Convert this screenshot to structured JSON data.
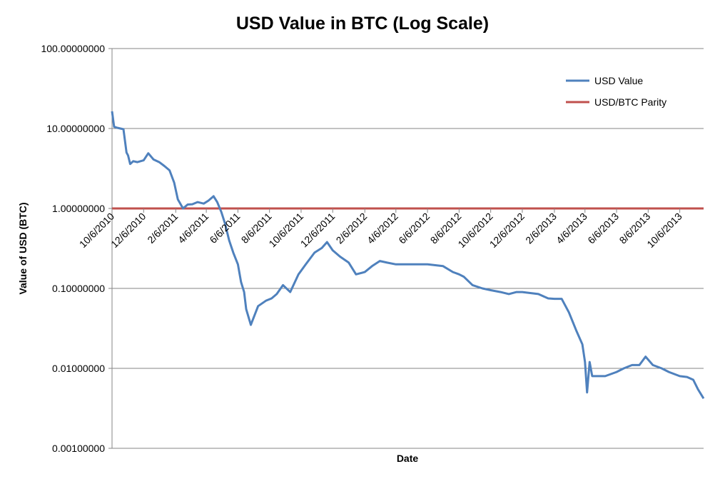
{
  "chart_data": {
    "type": "line",
    "title": "USD Value in BTC (Log Scale)",
    "xlabel": "Date",
    "ylabel": "Value of USD (BTC)",
    "y_scale": "log",
    "ylim": [
      0.001,
      100
    ],
    "y_ticks": [
      "100.00000000",
      "10.00000000",
      "1.00000000",
      "0.10000000",
      "0.01000000",
      "0.00100000"
    ],
    "y_tick_values": [
      100,
      10,
      1,
      0.1,
      0.01,
      0.001
    ],
    "x_tick_labels": [
      "10/6/2010",
      "12/6/2010",
      "2/6/2011",
      "4/6/2011",
      "6/6/2011",
      "8/6/2011",
      "10/6/2011",
      "12/6/2011",
      "2/6/2012",
      "4/6/2012",
      "6/6/2012",
      "8/6/2012",
      "10/6/2012",
      "12/6/2012",
      "2/6/2013",
      "4/6/2013",
      "6/6/2013",
      "8/6/2013",
      "10/6/2013"
    ],
    "xlim": [
      "2010-10-06",
      "2013-11-21"
    ],
    "grid": "horizontal",
    "legend_position": "top-right",
    "colors": {
      "usd_value": "#4f81bd",
      "parity": "#c0504d",
      "grid": "#868686"
    },
    "series": [
      {
        "name": "USD Value",
        "x": [
          "2010-10-06",
          "2010-10-10",
          "2010-10-16",
          "2010-10-22",
          "2010-10-28",
          "2010-11-03",
          "2010-11-06",
          "2010-11-10",
          "2010-11-16",
          "2010-11-24",
          "2010-12-06",
          "2010-12-15",
          "2010-12-25",
          "2011-01-05",
          "2011-01-15",
          "2011-01-25",
          "2011-02-03",
          "2011-02-10",
          "2011-02-20",
          "2011-03-01",
          "2011-03-10",
          "2011-03-20",
          "2011-04-01",
          "2011-04-10",
          "2011-04-20",
          "2011-04-27",
          "2011-05-05",
          "2011-05-12",
          "2011-05-20",
          "2011-05-28",
          "2011-06-06",
          "2011-06-12",
          "2011-06-18",
          "2011-06-22",
          "2011-07-01",
          "2011-07-15",
          "2011-07-30",
          "2011-08-10",
          "2011-08-20",
          "2011-09-01",
          "2011-09-15",
          "2011-10-01",
          "2011-10-15",
          "2011-11-01",
          "2011-11-15",
          "2011-11-25",
          "2011-12-06",
          "2011-12-20",
          "2012-01-06",
          "2012-01-20",
          "2012-02-06",
          "2012-02-20",
          "2012-03-06",
          "2012-03-20",
          "2012-04-06",
          "2012-05-06",
          "2012-06-06",
          "2012-07-06",
          "2012-07-25",
          "2012-08-06",
          "2012-08-15",
          "2012-09-01",
          "2012-09-20",
          "2012-10-06",
          "2012-10-25",
          "2012-11-10",
          "2012-11-25",
          "2012-12-06",
          "2013-01-06",
          "2013-01-25",
          "2013-02-06",
          "2013-02-20",
          "2013-03-06",
          "2013-03-20",
          "2013-04-01",
          "2013-04-06",
          "2013-04-10",
          "2013-04-15",
          "2013-04-20",
          "2013-05-01",
          "2013-05-15",
          "2013-06-06",
          "2013-06-20",
          "2013-07-06",
          "2013-07-20",
          "2013-08-01",
          "2013-08-15",
          "2013-09-01",
          "2013-09-15",
          "2013-10-06",
          "2013-10-20",
          "2013-11-01",
          "2013-11-10",
          "2013-11-21"
        ],
        "values": [
          16.4,
          10.5,
          10.2,
          10.0,
          9.8,
          5.0,
          4.6,
          3.6,
          3.9,
          3.8,
          4.0,
          4.9,
          4.1,
          3.8,
          3.4,
          3.0,
          2.1,
          1.3,
          1.0,
          1.12,
          1.13,
          1.2,
          1.15,
          1.25,
          1.42,
          1.2,
          0.9,
          0.65,
          0.4,
          0.28,
          0.2,
          0.12,
          0.09,
          0.055,
          0.035,
          0.06,
          0.07,
          0.075,
          0.085,
          0.11,
          0.09,
          0.15,
          0.2,
          0.28,
          0.32,
          0.38,
          0.3,
          0.25,
          0.21,
          0.15,
          0.16,
          0.19,
          0.22,
          0.21,
          0.2,
          0.2,
          0.2,
          0.19,
          0.16,
          0.15,
          0.14,
          0.11,
          0.1,
          0.095,
          0.09,
          0.085,
          0.09,
          0.09,
          0.085,
          0.075,
          0.074,
          0.074,
          0.05,
          0.03,
          0.02,
          0.012,
          0.005,
          0.012,
          0.008,
          0.008,
          0.008,
          0.009,
          0.01,
          0.011,
          0.011,
          0.014,
          0.011,
          0.01,
          0.009,
          0.008,
          0.0078,
          0.0072,
          0.0055,
          0.0042
        ]
      },
      {
        "name": "USD/BTC Parity",
        "x": [
          "2010-10-06",
          "2013-11-21"
        ],
        "values": [
          1,
          1
        ]
      }
    ]
  }
}
